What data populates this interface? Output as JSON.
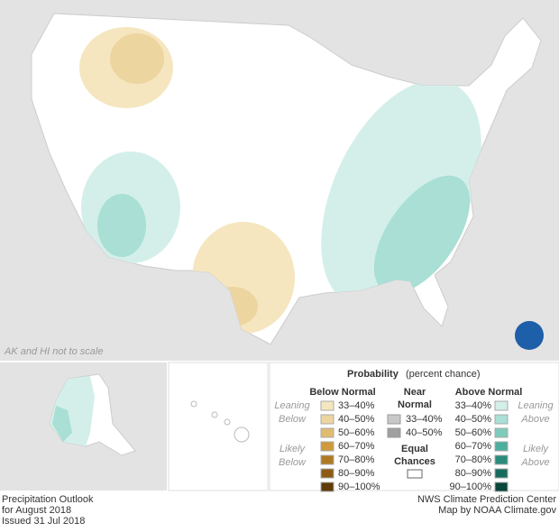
{
  "map": {
    "note": "AK and HI not to scale"
  },
  "legend": {
    "title": "Probability",
    "subtitle": "(percent chance)",
    "below": {
      "heading": "Below Normal",
      "ranges": [
        "33–40%",
        "40–50%",
        "50–60%",
        "60–70%",
        "70–80%",
        "80–90%",
        "90–100%"
      ],
      "colors": [
        "#f5e6c0",
        "#edd59f",
        "#e0bc6e",
        "#cf9a3c",
        "#b07a22",
        "#8c5a12",
        "#5f3b08"
      ]
    },
    "near": {
      "heading": [
        "Near",
        "Normal"
      ],
      "ranges": [
        "33–40%",
        "40–50%"
      ],
      "colors": [
        "#c8c8c8",
        "#a0a0a0"
      ]
    },
    "equal": {
      "heading": [
        "Equal",
        "Chances"
      ]
    },
    "above": {
      "heading": "Above Normal",
      "ranges": [
        "33–40%",
        "40–50%",
        "50–60%",
        "60–70%",
        "70–80%",
        "80–90%",
        "90–100%"
      ],
      "colors": [
        "#d4efe9",
        "#a9dfd4",
        "#7cccbb",
        "#4cb09d",
        "#2b8c7b",
        "#176b5d",
        "#0a463c"
      ]
    },
    "side_left": [
      [
        "Leaning",
        "Below"
      ],
      [
        "Likely",
        "Below"
      ]
    ],
    "side_right": [
      [
        "Leaning",
        "Above"
      ],
      [
        "Likely",
        "Above"
      ]
    ]
  },
  "footer": {
    "left": [
      "Precipitation Outlook",
      "for August 2018",
      "Issued 31 Jul 2018"
    ],
    "right": [
      "NWS Climate Prediction Center",
      "Map by NOAA Climate.gov"
    ]
  }
}
